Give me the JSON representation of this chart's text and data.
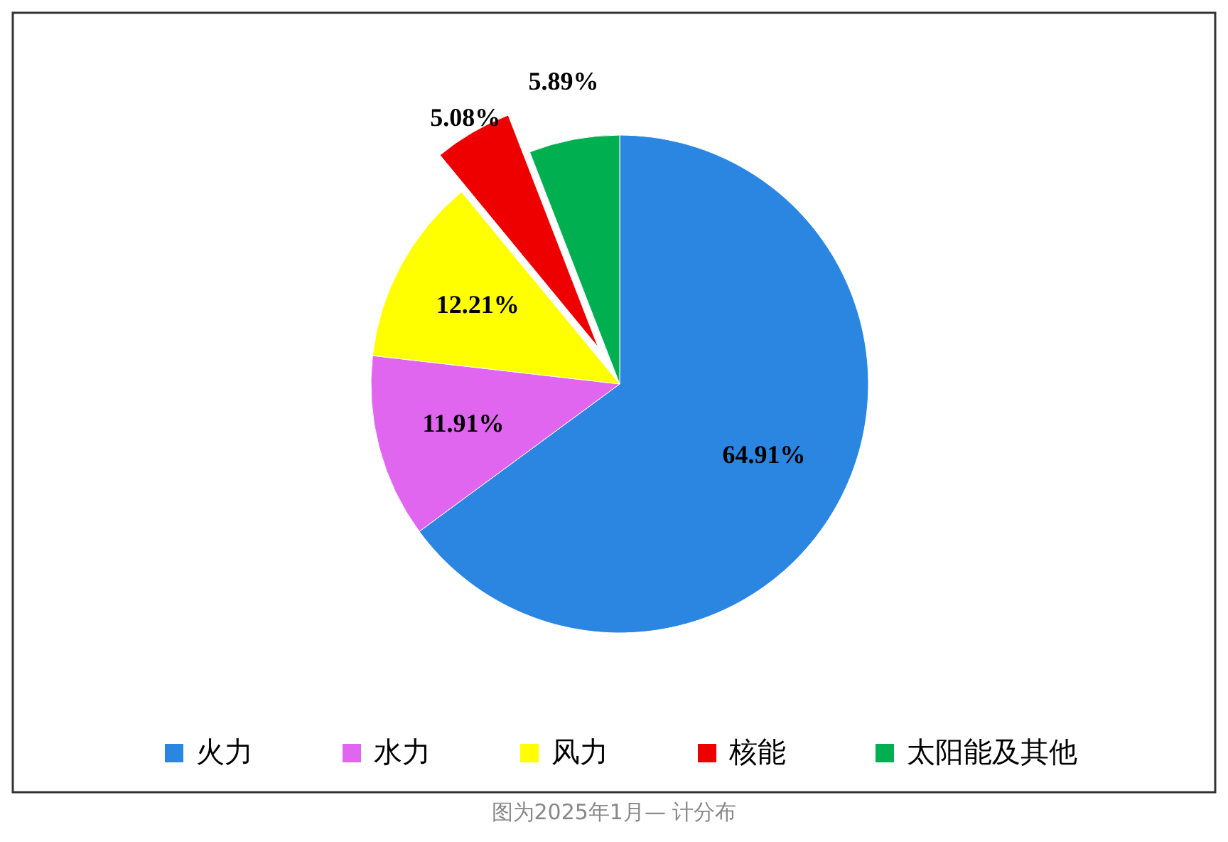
{
  "chart_data": {
    "type": "pie",
    "categories": [
      "火力",
      "水力",
      "风力",
      "核能",
      "太阳能及其他"
    ],
    "values": [
      64.91,
      11.91,
      12.21,
      5.08,
      5.89
    ],
    "colors": [
      "#2a86e0",
      "#e066f0",
      "#ffff00",
      "#ee0000",
      "#00b050"
    ],
    "value_labels": [
      "64.91%",
      "11.91%",
      "12.21%",
      "5.08%",
      "5.89%"
    ],
    "legend": "bottom",
    "annotations": [
      "图为2025年1月— 计分布"
    ]
  }
}
